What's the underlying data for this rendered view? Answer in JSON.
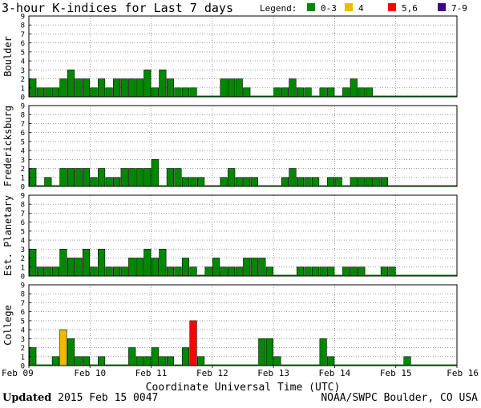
{
  "title": "3-hour K-indices for Last 7 days",
  "legend": {
    "label": "Legend:",
    "items": [
      {
        "label": "0-3",
        "color": "#008800"
      },
      {
        "label": "4",
        "color": "#eebb00"
      },
      {
        "label": "5,6",
        "color": "#ff0000"
      },
      {
        "label": "7-9",
        "color": "#440088"
      }
    ]
  },
  "footer": {
    "updated_label": "Updated",
    "updated_value": "2015 Feb 15 0047",
    "credit": "NOAA/SWPC Boulder, CO USA"
  },
  "chart_data": {
    "type": "bar",
    "title": "3-hour K-indices for Last 7 days",
    "xlabel": "Coordinate Universal Time (UTC)",
    "x_ticks": [
      "Feb 09",
      "Feb 10",
      "Feb 11",
      "Feb 12",
      "Feb 13",
      "Feb 14",
      "Feb 15",
      "Feb 16"
    ],
    "ylim": [
      0,
      9
    ],
    "y_ticks": [
      "0",
      "1",
      "2",
      "3",
      "4",
      "5",
      "6",
      "7",
      "8",
      "9"
    ],
    "bins_per_day": 8,
    "color_scale": [
      {
        "range": "0-3",
        "color": "#008800"
      },
      {
        "range": "4",
        "color": "#eebb00"
      },
      {
        "range": "5,6",
        "color": "#ff0000"
      },
      {
        "range": "7-9",
        "color": "#440088"
      }
    ],
    "series": [
      {
        "name": "Boulder",
        "values": [
          2,
          1,
          1,
          1,
          2,
          3,
          2,
          2,
          1,
          2,
          1,
          2,
          2,
          2,
          2,
          3,
          1,
          3,
          2,
          1,
          1,
          1,
          0,
          0,
          0,
          2,
          2,
          2,
          1,
          0,
          0,
          0,
          1,
          1,
          2,
          1,
          1,
          0,
          1,
          1,
          0,
          1,
          2,
          1,
          1,
          0,
          0,
          0,
          0,
          0,
          0,
          0,
          0,
          0,
          0,
          0
        ]
      },
      {
        "name": "Fredericksburg",
        "values": [
          2,
          0,
          1,
          0,
          2,
          2,
          2,
          2,
          1,
          2,
          1,
          1,
          2,
          2,
          2,
          2,
          3,
          0,
          2,
          2,
          1,
          1,
          1,
          0,
          0,
          1,
          2,
          1,
          1,
          1,
          0,
          0,
          0,
          1,
          2,
          1,
          1,
          1,
          0,
          1,
          1,
          0,
          1,
          1,
          1,
          1,
          1,
          0,
          0,
          0,
          0,
          0,
          0,
          0,
          0,
          0
        ]
      },
      {
        "name": "Est. Planetary",
        "values": [
          3,
          1,
          1,
          1,
          3,
          2,
          2,
          3,
          1,
          3,
          1,
          1,
          1,
          2,
          2,
          3,
          2,
          3,
          1,
          1,
          2,
          1,
          0,
          1,
          2,
          1,
          1,
          1,
          2,
          2,
          2,
          1,
          0,
          0,
          0,
          1,
          1,
          1,
          1,
          1,
          0,
          1,
          1,
          1,
          0,
          0,
          1,
          1,
          0,
          0,
          0,
          0,
          0,
          0,
          0,
          0
        ]
      },
      {
        "name": "College",
        "values": [
          2,
          0,
          0,
          1,
          4,
          3,
          1,
          1,
          0,
          1,
          0,
          0,
          0,
          2,
          1,
          1,
          2,
          1,
          1,
          0,
          2,
          5,
          1,
          0,
          0,
          0,
          0,
          0,
          0,
          0,
          3,
          3,
          1,
          0,
          0,
          0,
          0,
          0,
          3,
          1,
          0,
          0,
          0,
          0,
          0,
          0,
          0,
          0,
          0,
          1,
          0,
          0,
          0,
          0,
          0,
          0
        ]
      }
    ]
  }
}
